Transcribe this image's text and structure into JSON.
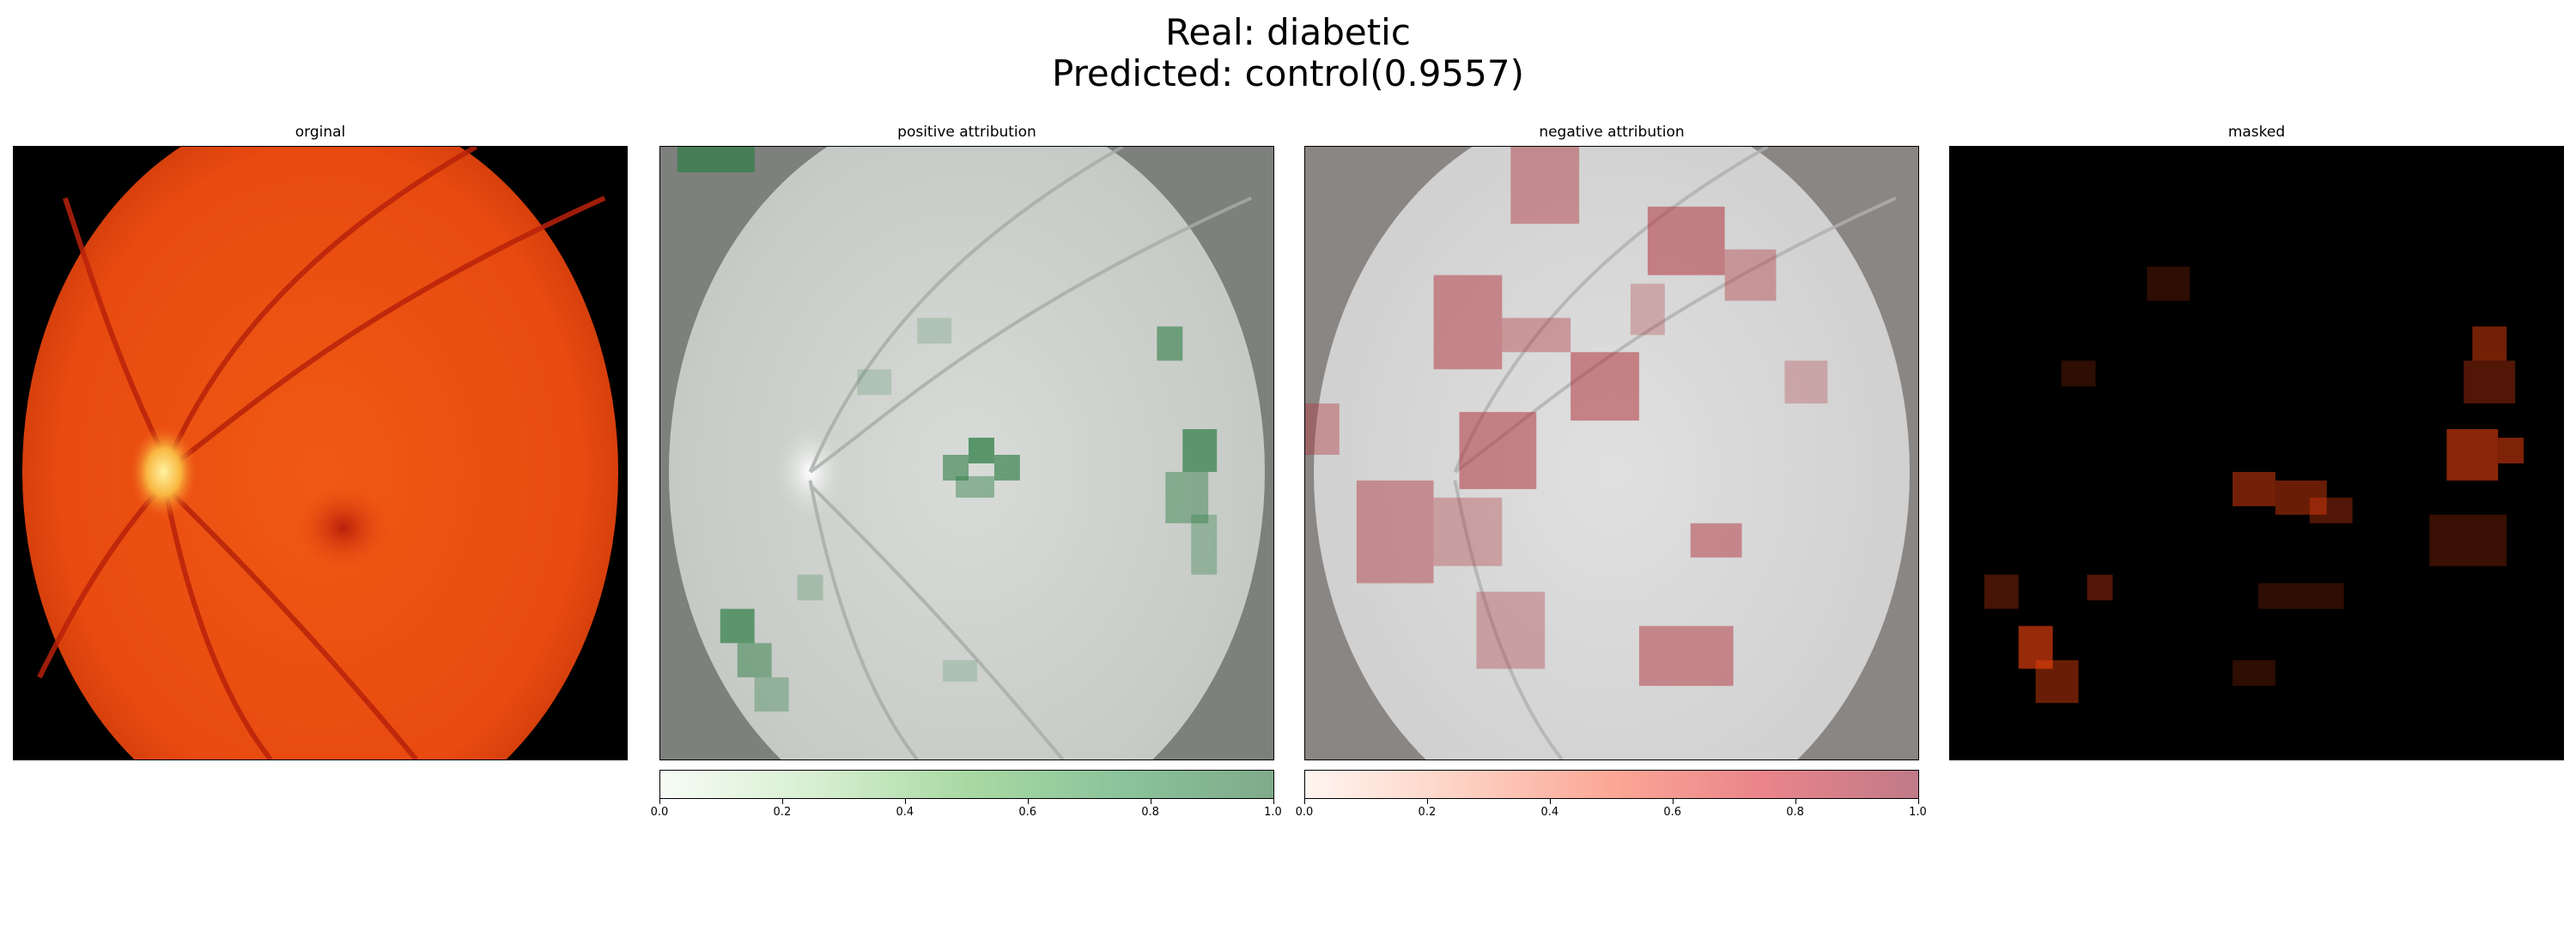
{
  "figure": {
    "title_line1": "Real: diabetic",
    "title_line2": "Predicted: control(0.9557)"
  },
  "panels": [
    {
      "title": "orginal"
    },
    {
      "title": "positive attribution"
    },
    {
      "title": "negative attribution"
    },
    {
      "title": "masked"
    }
  ],
  "colorbars": {
    "positive": {
      "ticks": [
        "0.0",
        "0.2",
        "0.4",
        "0.6",
        "0.8",
        "1.0"
      ],
      "color_low": "#f7fcf5",
      "color_high": "#7faa8a"
    },
    "negative": {
      "ticks": [
        "0.0",
        "0.2",
        "0.4",
        "0.6",
        "0.8",
        "1.0"
      ],
      "color_low": "#fff5f0",
      "color_high": "#c07a88"
    }
  },
  "colors": {
    "fundus": "#e94a10",
    "background": "#000000",
    "positive_attr": "#2e7d44",
    "negative_attr": "#b0343c"
  }
}
